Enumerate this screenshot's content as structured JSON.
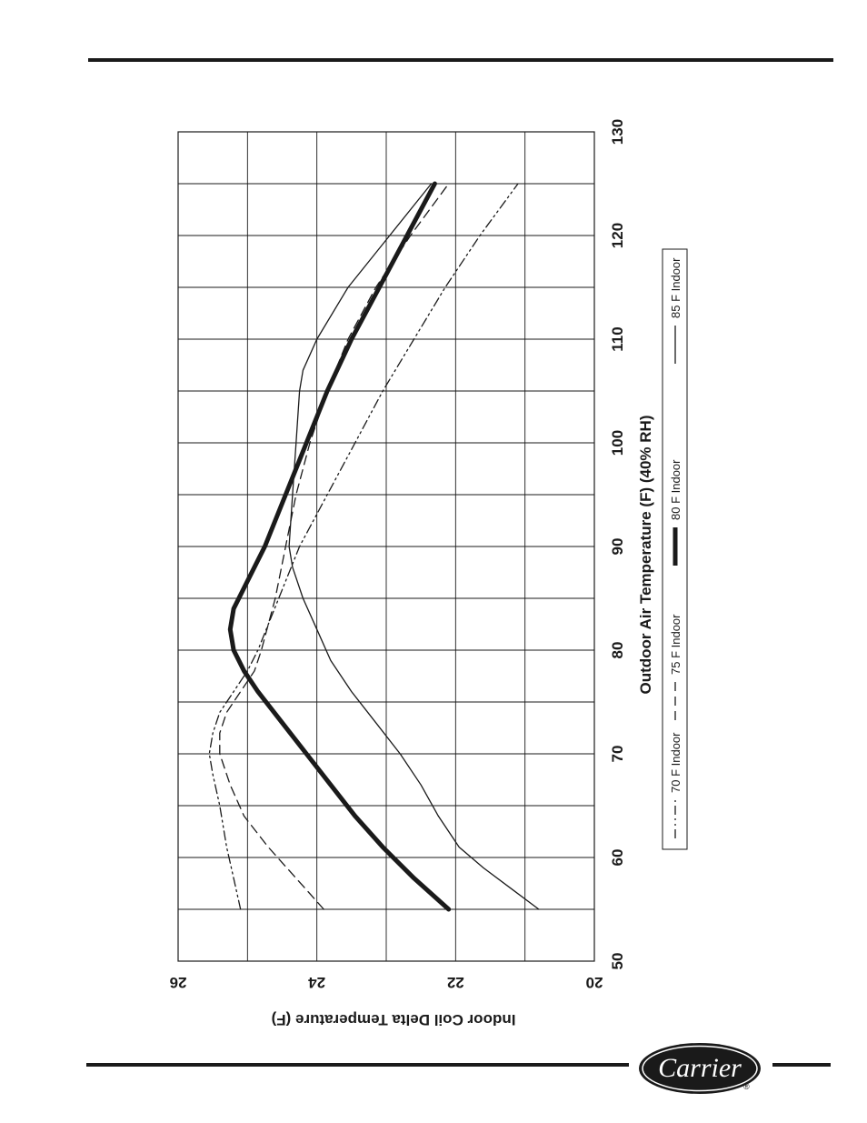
{
  "chart_data": {
    "type": "line",
    "xlabel": "Outdoor Air Temperature (F) (40% RH)",
    "ylabel": "Indoor Coil Delta Temperature (F)",
    "xlim": [
      50,
      130
    ],
    "ylim": [
      20,
      26
    ],
    "x_ticks": [
      "50",
      "60",
      "70",
      "80",
      "90",
      "100",
      "110",
      "120",
      "130"
    ],
    "y_ticks": [
      "20",
      "22",
      "24",
      "26"
    ],
    "grid": true,
    "legend_position": "bottom",
    "series": [
      {
        "name": "70 F Indoor",
        "style": "dash-dot-dot",
        "x": [
          55,
          58,
          61,
          65,
          68,
          70,
          72,
          74,
          76,
          78,
          80,
          85,
          90,
          95,
          100,
          105,
          110,
          115,
          120,
          125
        ],
        "y": [
          25.1,
          25.2,
          25.3,
          25.4,
          25.5,
          25.55,
          25.5,
          25.4,
          25.2,
          25.0,
          24.85,
          24.55,
          24.25,
          23.85,
          23.45,
          23.05,
          22.6,
          22.15,
          21.65,
          21.1
        ]
      },
      {
        "name": "75 F Indoor",
        "style": "dashed",
        "x": [
          55,
          58,
          61,
          64,
          67,
          70,
          72,
          74,
          76,
          78,
          80,
          85,
          90,
          95,
          100,
          105,
          110,
          115,
          120,
          125
        ],
        "y": [
          23.9,
          24.3,
          24.7,
          25.05,
          25.25,
          25.4,
          25.4,
          25.3,
          25.1,
          24.9,
          24.8,
          24.6,
          24.45,
          24.3,
          24.1,
          23.85,
          23.55,
          23.15,
          22.65,
          22.1
        ]
      },
      {
        "name": "80 F Indoor",
        "style": "heavy",
        "x": [
          55,
          58,
          61,
          64,
          67,
          70,
          73,
          76,
          78,
          80,
          82,
          84,
          86,
          90,
          95,
          100,
          105,
          110,
          115,
          120,
          125
        ],
        "y": [
          22.1,
          22.6,
          23.05,
          23.45,
          23.8,
          24.15,
          24.5,
          24.85,
          25.05,
          25.2,
          25.25,
          25.2,
          25.05,
          24.75,
          24.45,
          24.15,
          23.85,
          23.5,
          23.1,
          22.7,
          22.3
        ]
      },
      {
        "name": "85 F Indoor",
        "style": "thin",
        "x": [
          55,
          57,
          59,
          61,
          64,
          67,
          70,
          73,
          76,
          79,
          82,
          85,
          88,
          90,
          95,
          100,
          105,
          107,
          110,
          115,
          120,
          125
        ],
        "y": [
          20.8,
          21.2,
          21.6,
          21.95,
          22.25,
          22.5,
          22.8,
          23.15,
          23.5,
          23.8,
          24.0,
          24.2,
          24.35,
          24.4,
          24.35,
          24.3,
          24.25,
          24.2,
          24.0,
          23.55,
          22.95,
          22.35
        ]
      }
    ]
  },
  "logo": {
    "text": "Carrier",
    "registered": "®"
  }
}
